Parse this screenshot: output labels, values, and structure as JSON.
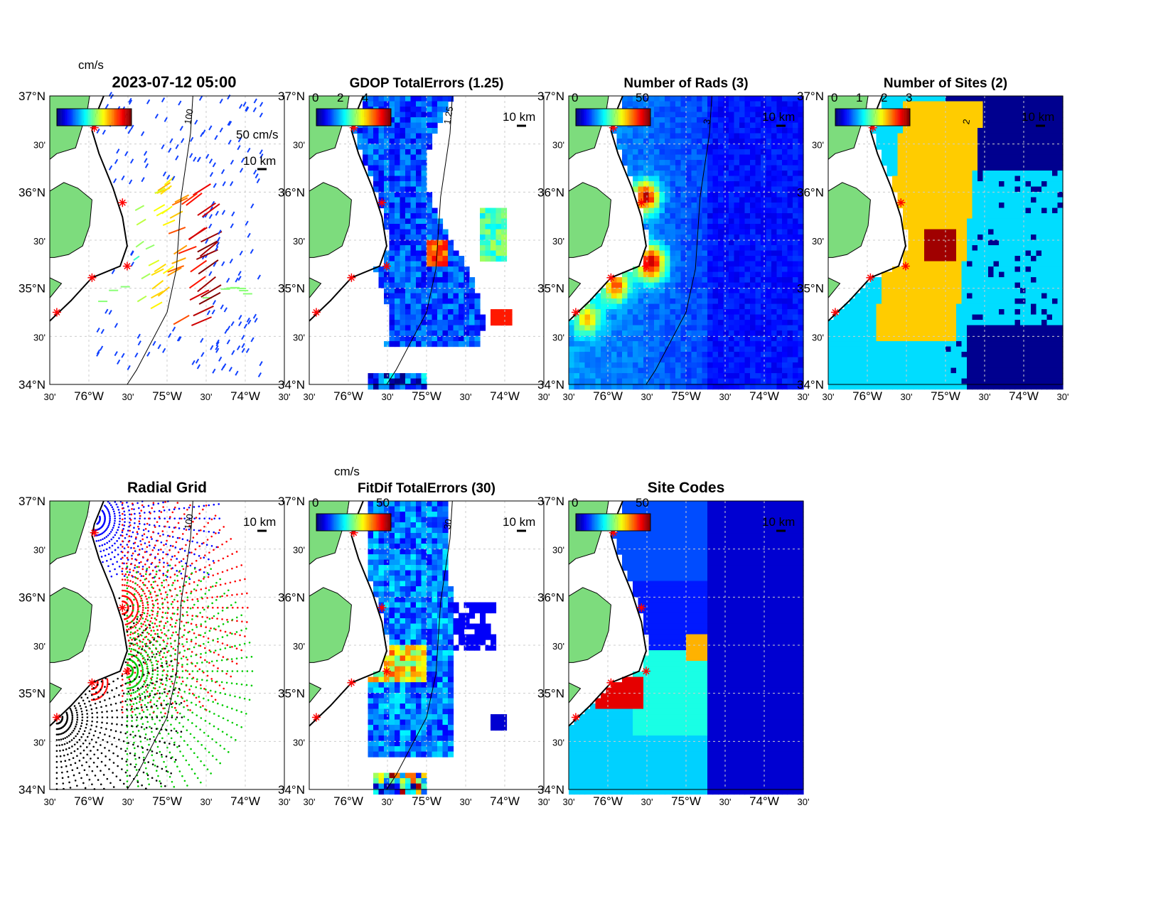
{
  "figure": {
    "timestamp": "2023-07-12 05:00",
    "axis": {
      "lat_labels": [
        "37°N",
        "30'",
        "36°N",
        "30'",
        "35°N",
        "30'",
        "34°N"
      ],
      "lon_labels": [
        "30'",
        "76°W",
        "30'",
        "75°W",
        "30'",
        "74°W",
        "30'"
      ]
    },
    "panels": [
      {
        "id": "currents",
        "title": "2023-07-12 05:00",
        "cbar_unit": "cm/s",
        "cbar_ticks": [],
        "scale_vector": "50 cm/s",
        "scale_bar": "10 km",
        "contour_label": "100",
        "kind": "vectors"
      },
      {
        "id": "gdop",
        "title": "GDOP TotalErrors (1.25)",
        "cbar_unit": "",
        "cbar_ticks": [
          "0",
          "2",
          "4"
        ],
        "scale_bar": "10 km",
        "contour_label": "1.25",
        "kind": "grid"
      },
      {
        "id": "nrads",
        "title": "Number of Rads (3)",
        "cbar_unit": "",
        "cbar_ticks": [
          "0",
          "50"
        ],
        "scale_bar": "10 km",
        "contour_label": "3",
        "kind": "grid"
      },
      {
        "id": "nsites",
        "title": "Number of Sites (2)",
        "cbar_unit": "",
        "cbar_ticks": [
          "0",
          "1",
          "2",
          "3"
        ],
        "scale_bar": "10 km",
        "contour_label": "2",
        "kind": "grid"
      },
      {
        "id": "radgrid",
        "title": "Radial Grid",
        "cbar_unit": "",
        "cbar_ticks": [],
        "scale_bar": "10 km",
        "contour_label": "100",
        "kind": "radial"
      },
      {
        "id": "fitdif",
        "title": "FitDif TotalErrors (30)",
        "cbar_unit": "cm/s",
        "cbar_ticks": [
          "0",
          "50"
        ],
        "scale_bar": "10 km",
        "contour_label": "30",
        "kind": "grid"
      },
      {
        "id": "sitecodes",
        "title": "Site Codes",
        "cbar_unit": "",
        "cbar_ticks": [
          "0",
          "50"
        ],
        "scale_bar": "10 km",
        "contour_label": "",
        "kind": "grid"
      }
    ],
    "colors": {
      "land": "#7ddc7d",
      "site_marker": "#ff0000"
    }
  }
}
